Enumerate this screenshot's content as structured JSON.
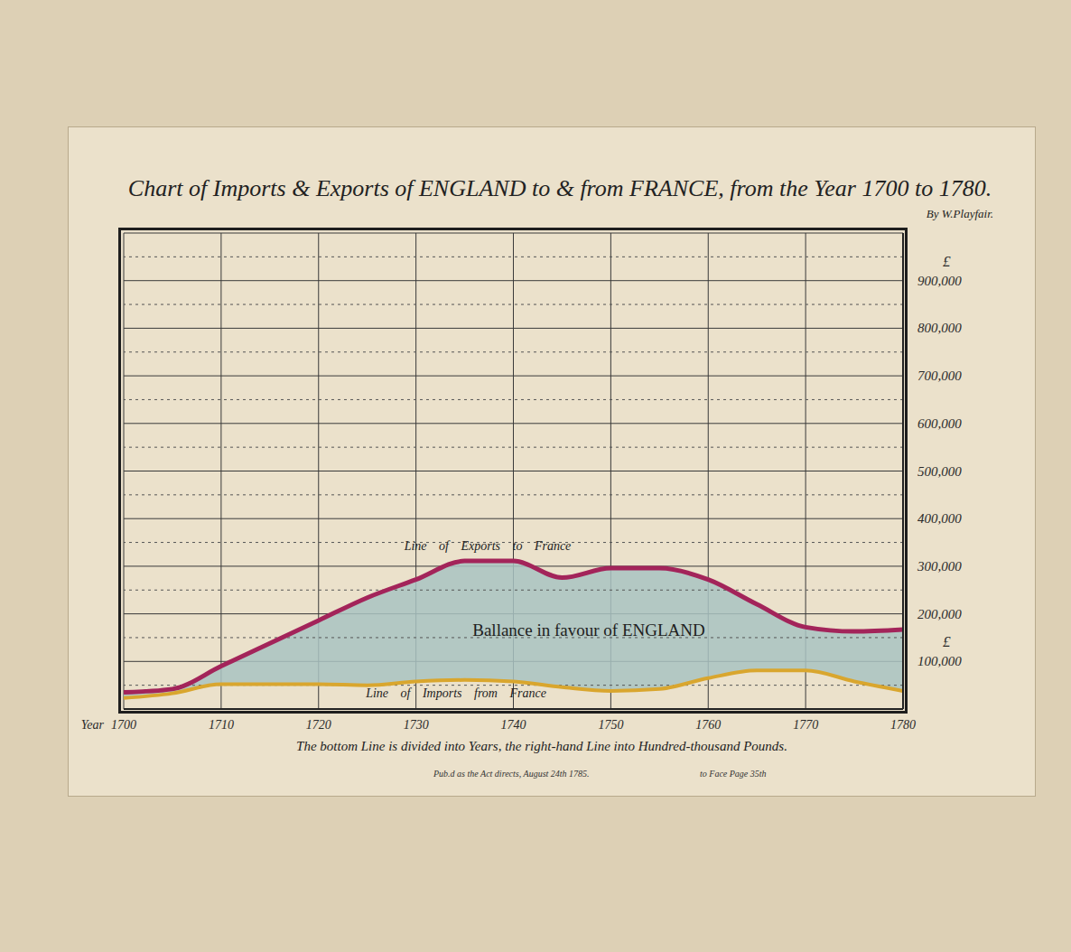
{
  "chart_data": {
    "type": "area",
    "title": "Chart of Imports & Exports of ENGLAND to & from FRANCE, from the Year 1700 to 1780.",
    "subtitle": "By W.Playfair.",
    "x_label": "Year",
    "y_unit": "£",
    "footnote": "The bottom Line is divided into Years, the right-hand Line into Hundred-thousand Pounds.",
    "imprint": "Pub.d as the Act directs, August 24th 1785.",
    "page_note": "to Face Page 35th",
    "annotations": [
      "Ballance in favour of ENGLAND"
    ],
    "x": [
      1700,
      1705,
      1710,
      1715,
      1720,
      1725,
      1730,
      1735,
      1740,
      1745,
      1750,
      1755,
      1760,
      1765,
      1770,
      1775,
      1780
    ],
    "series": [
      {
        "name": "Line of Exports to France",
        "color": "#a3245a",
        "values": [
          35000,
          42000,
          90000,
          138000,
          186000,
          234000,
          272000,
          311000,
          311000,
          276000,
          296000,
          296000,
          272000,
          220000,
          172000,
          163000,
          167000
        ]
      },
      {
        "name": "Line of Imports from France",
        "color": "#d9a62e",
        "values": [
          23000,
          33000,
          52000,
          52000,
          52000,
          50000,
          58000,
          61000,
          58000,
          46000,
          38000,
          42000,
          65000,
          81000,
          81000,
          58000,
          38000
        ]
      }
    ],
    "xlim": [
      1700,
      1780
    ],
    "xticks": [
      1700,
      1710,
      1720,
      1730,
      1740,
      1750,
      1760,
      1770,
      1780
    ],
    "ylim": [
      0,
      1000000
    ],
    "yticks": [
      {
        "value": 100000,
        "label": "100,000"
      },
      {
        "value": 200000,
        "label": "200,000"
      },
      {
        "value": 300000,
        "label": "300,000"
      },
      {
        "value": 400000,
        "label": "400,000"
      },
      {
        "value": 500000,
        "label": "500,000"
      },
      {
        "value": 600000,
        "label": "600,000"
      },
      {
        "value": 700000,
        "label": "700,000"
      },
      {
        "value": 800000,
        "label": "800,000"
      },
      {
        "value": 900000,
        "label": "900,000"
      }
    ],
    "grid": true
  }
}
